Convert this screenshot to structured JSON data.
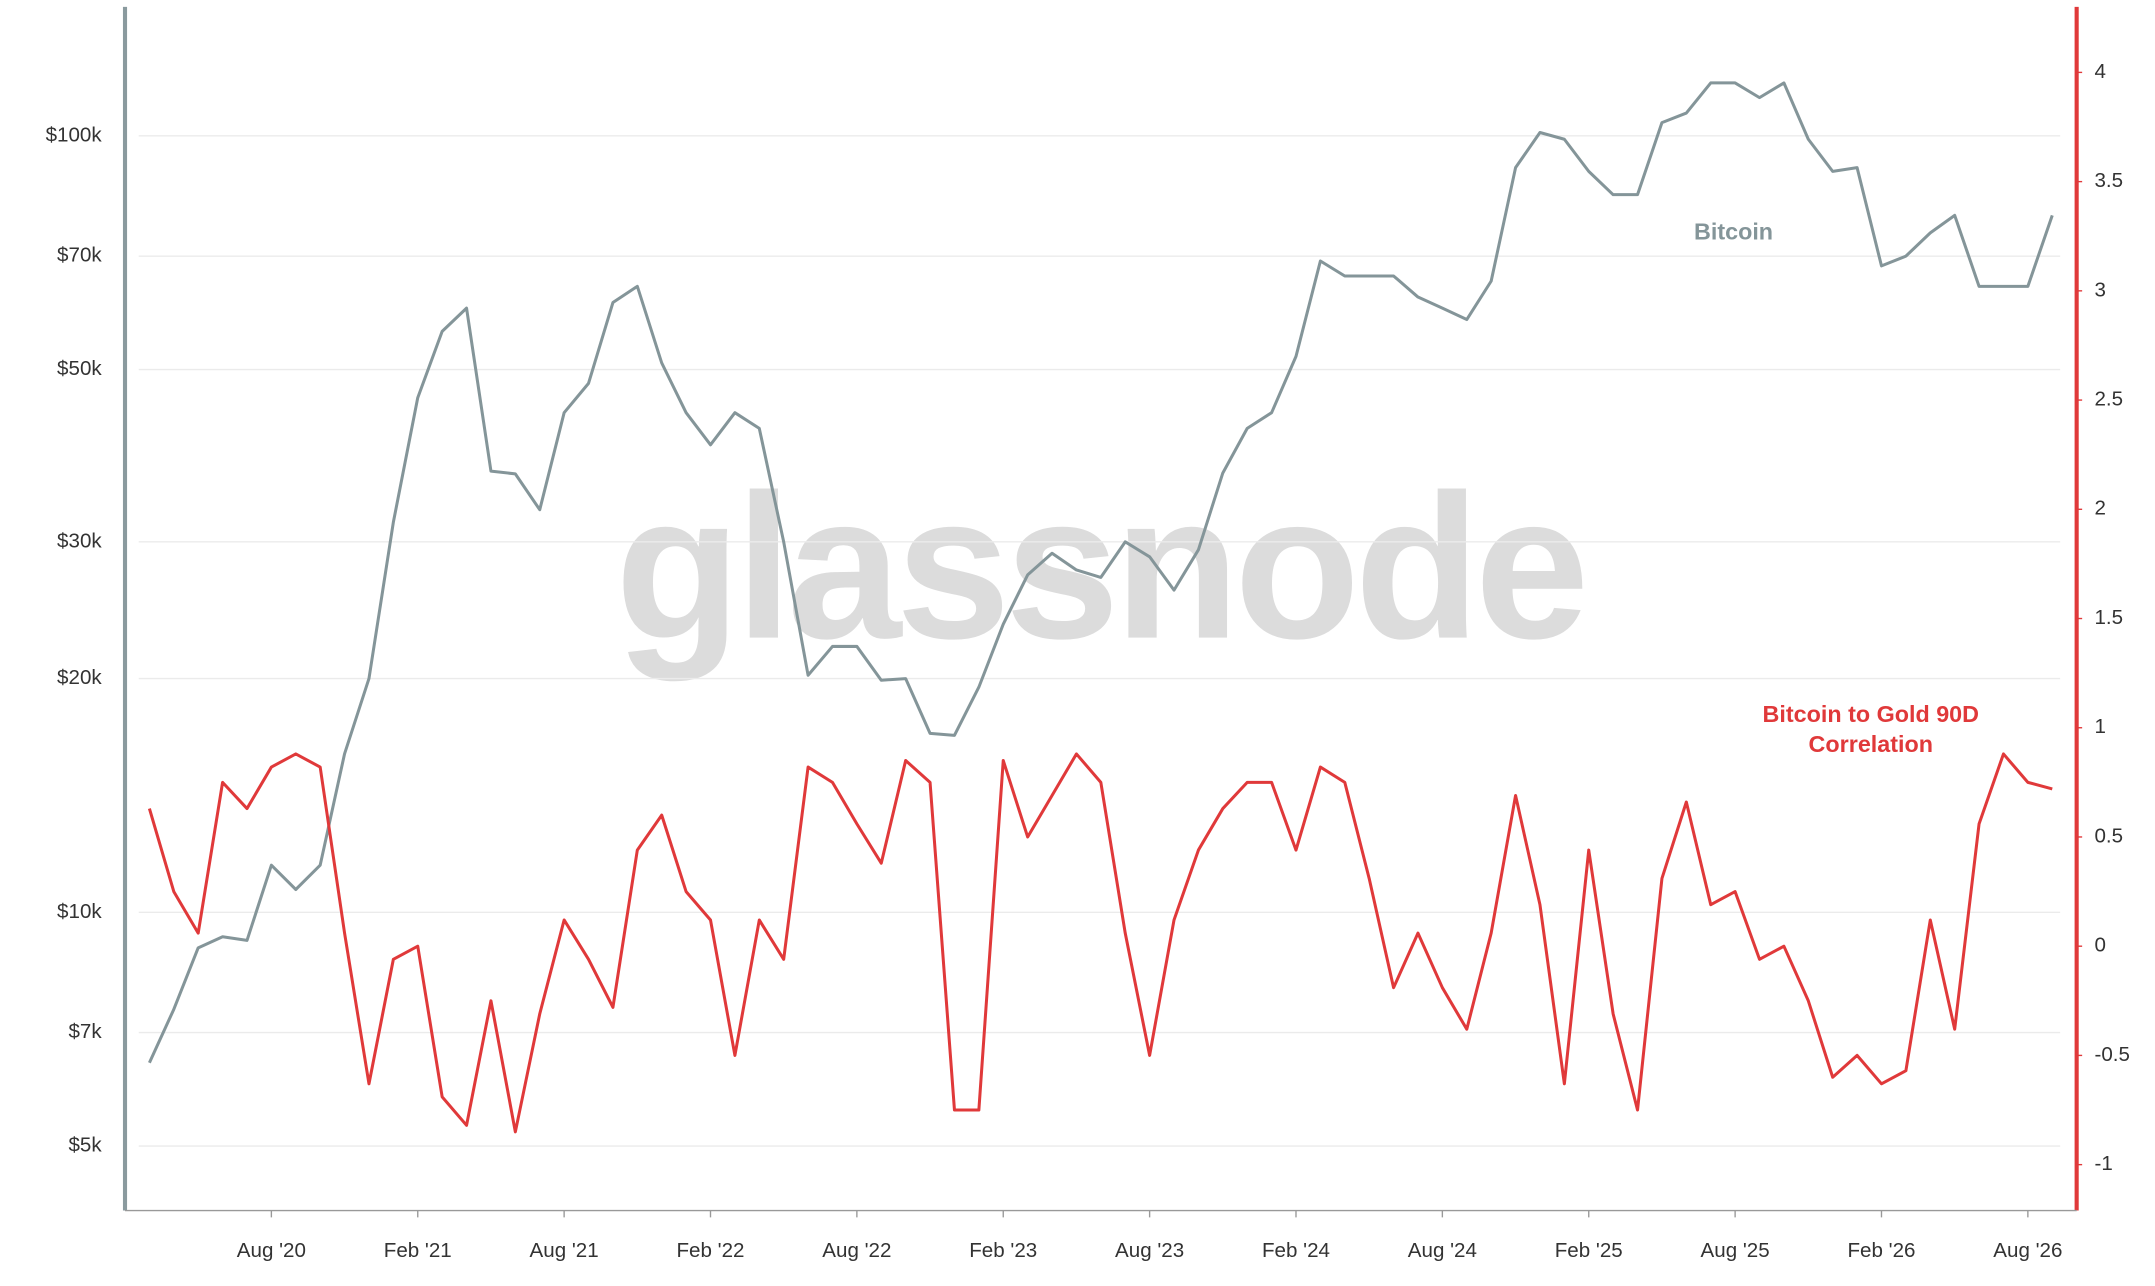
{
  "chart_data": {
    "type": "line",
    "watermark": "glassnode",
    "x": [
      "2020-03",
      "2020-04",
      "2020-05",
      "2020-06",
      "2020-07",
      "2020-08",
      "2020-09",
      "2020-10",
      "2020-11",
      "2020-12",
      "2021-01",
      "2021-02",
      "2021-03",
      "2021-04",
      "2021-05",
      "2021-06",
      "2021-07",
      "2021-08",
      "2021-09",
      "2021-10",
      "2021-11",
      "2021-12",
      "2022-01",
      "2022-02",
      "2022-03",
      "2022-04",
      "2022-05",
      "2022-06",
      "2022-07",
      "2022-08",
      "2022-09",
      "2022-10",
      "2022-11",
      "2022-12",
      "2023-01",
      "2023-02",
      "2023-03",
      "2023-04",
      "2023-05",
      "2023-06",
      "2023-07",
      "2023-08",
      "2023-09",
      "2023-10",
      "2023-11",
      "2023-12",
      "2024-01",
      "2024-02",
      "2024-03",
      "2024-04",
      "2024-05",
      "2024-06",
      "2024-07",
      "2024-08",
      "2024-09",
      "2024-10",
      "2024-11",
      "2024-12",
      "2025-01",
      "2025-02",
      "2025-03",
      "2025-04",
      "2025-05",
      "2025-06",
      "2025-07",
      "2025-08",
      "2025-09",
      "2025-10",
      "2025-11",
      "2025-12",
      "2026-01",
      "2026-02",
      "2026-03",
      "2026-04",
      "2026-05",
      "2026-06",
      "2026-07",
      "2026-08",
      "2026-09"
    ],
    "xlim": [
      "2020-02",
      "2026-10"
    ],
    "xticks": [
      {
        "value": "2020-08",
        "label": "Aug '20"
      },
      {
        "value": "2021-02",
        "label": "Feb '21"
      },
      {
        "value": "2021-08",
        "label": "Aug '21"
      },
      {
        "value": "2022-02",
        "label": "Feb '22"
      },
      {
        "value": "2022-08",
        "label": "Aug '22"
      },
      {
        "value": "2023-02",
        "label": "Feb '23"
      },
      {
        "value": "2023-08",
        "label": "Aug '23"
      },
      {
        "value": "2024-02",
        "label": "Feb '24"
      },
      {
        "value": "2024-08",
        "label": "Aug '24"
      },
      {
        "value": "2025-02",
        "label": "Feb '25"
      },
      {
        "value": "2025-08",
        "label": "Aug '25"
      },
      {
        "value": "2026-02",
        "label": "Feb '26"
      },
      {
        "value": "2026-08",
        "label": "Aug '26"
      }
    ],
    "ylog": true,
    "ylim": [
      4130,
      146600
    ],
    "yticks": [
      {
        "value": 5000,
        "label": "$5k"
      },
      {
        "value": 7000,
        "label": "$7k"
      },
      {
        "value": 10000,
        "label": "$10k"
      },
      {
        "value": 20000,
        "label": "$20k"
      },
      {
        "value": 30000,
        "label": "$30k"
      },
      {
        "value": 50000,
        "label": "$50k"
      },
      {
        "value": 70000,
        "label": "$70k"
      },
      {
        "value": 100000,
        "label": "$100k"
      }
    ],
    "y2lim": [
      -1.21,
      4.3
    ],
    "y2ticks": [
      -1,
      -0.5,
      0,
      0.5,
      1,
      1.5,
      2,
      2.5,
      3,
      3.5,
      4
    ],
    "grid": true,
    "series": [
      {
        "name": "Bitcoin",
        "color": "#849599",
        "axis": "y",
        "values": [
          6400,
          7500,
          9000,
          9300,
          9200,
          11500,
          10700,
          11500,
          16000,
          20000,
          31800,
          46000,
          56000,
          60000,
          37000,
          36700,
          33000,
          44000,
          48000,
          61000,
          64000,
          51000,
          44000,
          40000,
          44000,
          42000,
          30000,
          20200,
          22000,
          22000,
          19900,
          20000,
          17000,
          16900,
          19500,
          23500,
          27200,
          29000,
          27600,
          27000,
          30000,
          28700,
          26000,
          29300,
          36800,
          42000,
          44000,
          52000,
          69000,
          66000,
          66000,
          66000,
          62000,
          60000,
          58000,
          65000,
          91000,
          101000,
          99000,
          90000,
          84000,
          84000,
          104000,
          107000,
          117000,
          117000,
          112000,
          117000,
          99000,
          90000,
          91000,
          68000,
          70000,
          75000,
          79000,
          64000,
          64000,
          64000,
          79000
        ]
      },
      {
        "name": "Bitcoin to Gold 90D Correlation",
        "color": "#e0393a",
        "axis": "y2",
        "values": [
          0.63,
          0.25,
          0.06,
          0.75,
          0.63,
          0.82,
          0.88,
          0.82,
          0.06,
          -0.63,
          -0.06,
          0,
          -0.69,
          -0.82,
          -0.25,
          -0.85,
          -0.31,
          0.12,
          -0.06,
          -0.28,
          0.44,
          0.6,
          0.25,
          0.12,
          -0.5,
          0.12,
          -0.06,
          0.82,
          0.75,
          0.56,
          0.38,
          0.85,
          0.75,
          -0.75,
          -0.75,
          0.85,
          0.5,
          0.69,
          0.88,
          0.75,
          0.06,
          -0.5,
          0.12,
          0.44,
          0.63,
          0.75,
          0.75,
          0.44,
          0.82,
          0.75,
          0.31,
          -0.19,
          0.06,
          -0.19,
          -0.38,
          0.06,
          0.69,
          0.19,
          -0.63,
          0.44,
          -0.31,
          -0.75,
          0.31,
          0.66,
          0.19,
          0.25,
          -0.06,
          0,
          -0.25,
          -0.6,
          -0.5,
          -0.63,
          -0.57,
          0.12,
          -0.38,
          0.56,
          0.88,
          0.75,
          0.72
        ]
      }
    ]
  }
}
